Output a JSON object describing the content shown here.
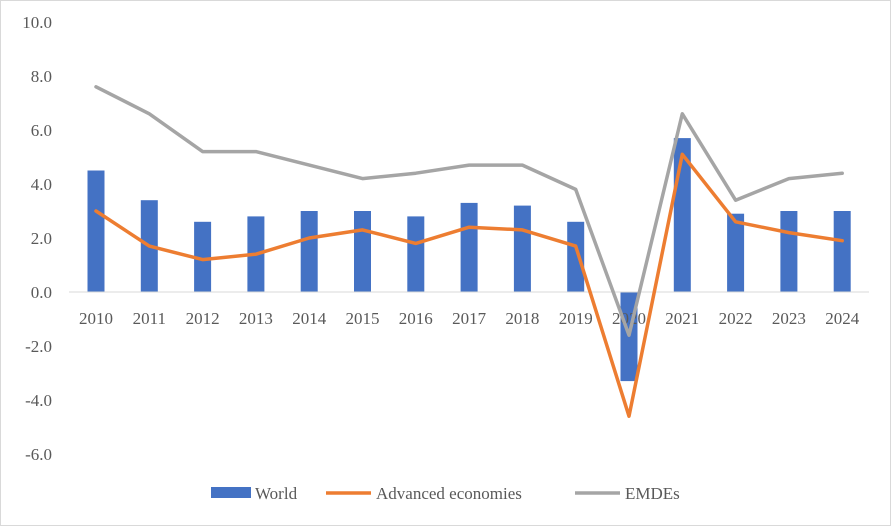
{
  "chart_data": {
    "type": "bar",
    "categories": [
      "2010",
      "2011",
      "2012",
      "2013",
      "2014",
      "2015",
      "2016",
      "2017",
      "2018",
      "2019",
      "2020",
      "2021",
      "2022",
      "2023",
      "2024"
    ],
    "y_ticks": [
      "10.0",
      "8.0",
      "6.0",
      "4.0",
      "2.0",
      "0.0",
      "-2.0",
      "-4.0",
      "-6.0"
    ],
    "ylim": [
      -6,
      10
    ],
    "grid": false,
    "legend_position": "bottom",
    "series": [
      {
        "name": "World",
        "kind": "bar",
        "color": "#4472c4",
        "values": [
          4.5,
          3.4,
          2.6,
          2.8,
          3.0,
          3.0,
          2.8,
          3.3,
          3.2,
          2.6,
          -3.3,
          5.7,
          2.9,
          3.0,
          3.0
        ]
      },
      {
        "name": "Advanced economies",
        "kind": "line",
        "color": "#ed7d31",
        "values": [
          3.0,
          1.7,
          1.2,
          1.4,
          2.0,
          2.3,
          1.8,
          2.4,
          2.3,
          1.7,
          -4.6,
          5.1,
          2.6,
          2.2,
          1.9
        ]
      },
      {
        "name": "EMDEs",
        "kind": "line",
        "color": "#a5a5a5",
        "values": [
          7.6,
          6.6,
          5.2,
          5.2,
          4.7,
          4.2,
          4.4,
          4.7,
          4.7,
          3.8,
          -1.6,
          6.6,
          3.4,
          4.2,
          4.4
        ]
      }
    ]
  }
}
